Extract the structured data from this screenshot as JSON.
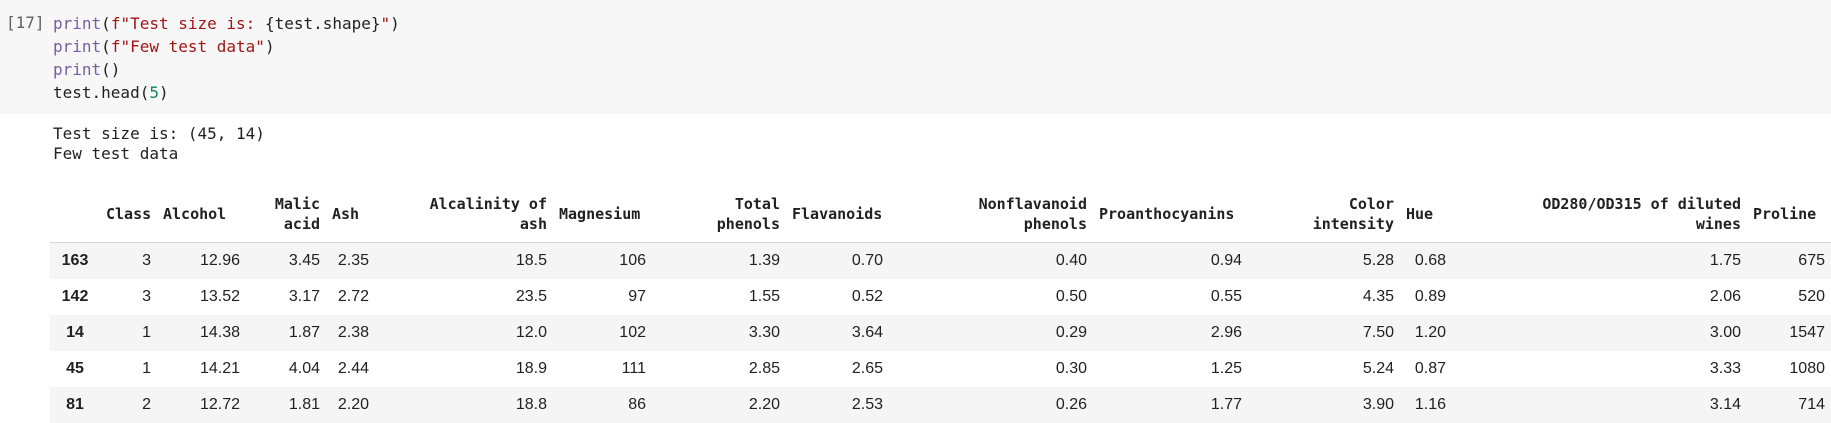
{
  "cell": {
    "prompt": "[17]",
    "code_lines": [
      [
        {
          "t": "print",
          "k": "fn"
        },
        {
          "t": "(",
          "k": "plain"
        },
        {
          "t": "f\"Test size is: ",
          "k": "str"
        },
        {
          "t": "{test.shape}",
          "k": "plain"
        },
        {
          "t": "\"",
          "k": "str"
        },
        {
          "t": ")",
          "k": "plain"
        }
      ],
      [
        {
          "t": "print",
          "k": "fn"
        },
        {
          "t": "(",
          "k": "plain"
        },
        {
          "t": "f\"Few test data\"",
          "k": "str"
        },
        {
          "t": ")",
          "k": "plain"
        }
      ],
      [
        {
          "t": "print",
          "k": "fn"
        },
        {
          "t": "()",
          "k": "plain"
        }
      ],
      [
        {
          "t": "test.head(",
          "k": "plain"
        },
        {
          "t": "5",
          "k": "num"
        },
        {
          "t": ")",
          "k": "plain"
        }
      ]
    ]
  },
  "output": {
    "stdout_lines": [
      "Test size is: (45, 14)",
      "Few test data"
    ]
  },
  "dataframe": {
    "columns": [
      {
        "label": "",
        "align": "center"
      },
      {
        "label": "Class",
        "align": "right"
      },
      {
        "label": "Alcohol",
        "align": "left"
      },
      {
        "label": "Malic\nacid",
        "align": "right"
      },
      {
        "label": "Ash",
        "align": "left"
      },
      {
        "label": "Alcalinity of\nash",
        "align": "right"
      },
      {
        "label": "Magnesium",
        "align": "left"
      },
      {
        "label": "Total\nphenols",
        "align": "right"
      },
      {
        "label": "Flavanoids",
        "align": "left"
      },
      {
        "label": "Nonflavanoid\nphenols",
        "align": "right"
      },
      {
        "label": "Proanthocyanins",
        "align": "left"
      },
      {
        "label": "Color\nintensity",
        "align": "right"
      },
      {
        "label": "Hue",
        "align": "left"
      },
      {
        "label": "OD280/OD315 of diluted\nwines",
        "align": "right"
      },
      {
        "label": "Proline",
        "align": "left"
      }
    ],
    "rows": [
      [
        "163",
        "3",
        "12.96",
        "3.45",
        "2.35",
        "18.5",
        "106",
        "1.39",
        "0.70",
        "0.40",
        "0.94",
        "5.28",
        "0.68",
        "1.75",
        "675"
      ],
      [
        "142",
        "3",
        "13.52",
        "3.17",
        "2.72",
        "23.5",
        "97",
        "1.55",
        "0.52",
        "0.50",
        "0.55",
        "4.35",
        "0.89",
        "2.06",
        "520"
      ],
      [
        "14",
        "1",
        "14.38",
        "1.87",
        "2.38",
        "12.0",
        "102",
        "3.30",
        "3.64",
        "0.29",
        "2.96",
        "7.50",
        "1.20",
        "3.00",
        "1547"
      ],
      [
        "45",
        "1",
        "14.21",
        "4.04",
        "2.44",
        "18.9",
        "111",
        "2.85",
        "2.65",
        "0.30",
        "1.25",
        "5.24",
        "0.87",
        "3.33",
        "1080"
      ],
      [
        "81",
        "2",
        "12.72",
        "1.81",
        "2.20",
        "18.8",
        "86",
        "2.20",
        "2.53",
        "0.26",
        "1.77",
        "3.90",
        "1.16",
        "3.14",
        "714"
      ]
    ]
  }
}
